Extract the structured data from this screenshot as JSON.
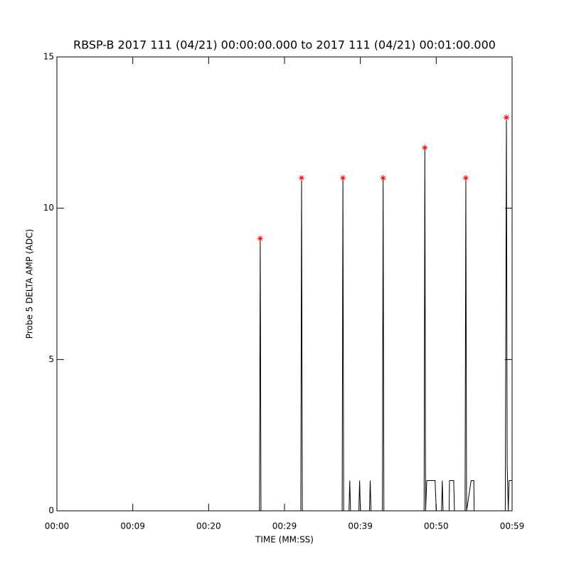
{
  "chart_data": {
    "type": "line",
    "title": "RBSP-B 2017 111 (04/21) 00:00:00.000 to 2017 111 (04/21) 00:01:00.000",
    "x_label": "TIME (MM:SS)",
    "y_label": "Probe 5 DELTA AMP (ADC)",
    "xlim": [
      0,
      60
    ],
    "ylim": [
      0,
      15
    ],
    "xticks": [
      {
        "value": 0,
        "label": "00:00"
      },
      {
        "value": 10,
        "label": "00:09"
      },
      {
        "value": 20,
        "label": "00:20"
      },
      {
        "value": 30,
        "label": "00:29"
      },
      {
        "value": 40,
        "label": "00:39"
      },
      {
        "value": 50,
        "label": "00:50"
      },
      {
        "value": 60,
        "label": "00:59"
      }
    ],
    "yticks": [
      0,
      5,
      10,
      15
    ],
    "series": [
      {
        "color": "#000000",
        "x": [
          0,
          26.7,
          26.8,
          26.9,
          32.15,
          32.25,
          32.35,
          37.6,
          37.7,
          37.8,
          38.5,
          38.6,
          38.7,
          39.8,
          39.9,
          40.0,
          41.2,
          41.3,
          41.4,
          42.9,
          43.0,
          43.1,
          48.4,
          48.5,
          48.6,
          48.75,
          49.85,
          50.0,
          50.7,
          50.8,
          50.9,
          51.7,
          51.75,
          52.3,
          52.4,
          53.8,
          53.9,
          54.0,
          54.6,
          54.95,
          55.0,
          59.1,
          59.25,
          59.35,
          59.5,
          59.6,
          60
        ],
        "values": [
          0,
          0,
          9,
          0,
          0,
          11,
          0,
          0,
          11,
          0,
          0,
          1,
          0,
          0,
          1,
          0,
          0,
          1,
          0,
          0,
          11,
          0,
          0,
          12,
          0,
          1,
          1,
          0,
          0,
          1,
          0,
          0,
          1,
          1,
          0,
          0,
          11,
          0,
          1,
          1,
          0,
          0,
          13,
          1.5,
          0,
          1,
          1
        ]
      },
      {
        "color": "#ff0000",
        "marker": "asterisk",
        "x": [
          26.8,
          32.25,
          37.7,
          43.0,
          48.5,
          53.9,
          59.25
        ],
        "values": [
          9,
          11,
          11,
          11,
          12,
          11,
          13
        ]
      }
    ]
  }
}
